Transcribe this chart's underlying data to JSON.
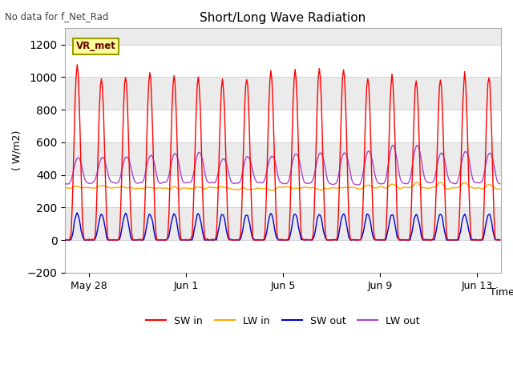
{
  "title": "Short/Long Wave Radiation",
  "top_left_text": "No data for f_Net_Rad",
  "ylabel": "( W/m2)",
  "xlabel": "Time",
  "ylim": [
    -200,
    1300
  ],
  "yticks": [
    -200,
    0,
    200,
    400,
    600,
    800,
    1000,
    1200
  ],
  "bg_color": "#ffffff",
  "plot_bg_color": "#ebebeb",
  "band_color": "#ffffff",
  "label_box_text": "VR_met",
  "label_box_facecolor": "#ffff99",
  "label_box_edgecolor": "#999900",
  "legend": [
    "SW in",
    "LW in",
    "SW out",
    "LW out"
  ],
  "colors": [
    "#ff0000",
    "#ffa500",
    "#0000cc",
    "#aa44cc"
  ],
  "num_days": 18,
  "sw_in_peak": 1050,
  "lw_in_base": 320,
  "lw_in_daytime_bump": 60,
  "sw_out_peak": 160,
  "lw_out_base_night": 350,
  "lw_out_peak": 540,
  "xtick_dates": [
    "May 28",
    "Jun 1",
    "Jun 5",
    "Jun 9",
    "Jun 13"
  ],
  "xtick_offsets_days": [
    1,
    5,
    9,
    13,
    17
  ],
  "figsize": [
    6.4,
    4.8
  ],
  "dpi": 100
}
